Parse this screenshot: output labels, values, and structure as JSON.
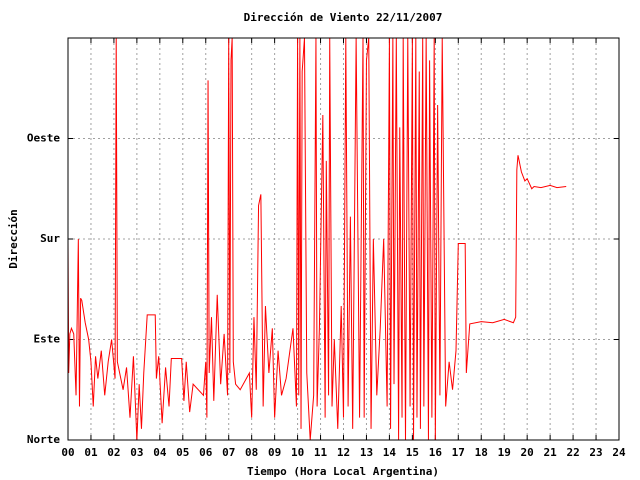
{
  "chart_data": {
    "type": "line",
    "title": "Dirección de Viento 22/11/2007",
    "x_label": "Tiempo (Hora Local Argentina)",
    "y_label": "Dirección",
    "color": "#ff0000",
    "grid": true,
    "xlim": [
      0,
      24
    ],
    "xticks": [
      {
        "value": 0,
        "label": "00"
      },
      {
        "value": 1,
        "label": "01"
      },
      {
        "value": 2,
        "label": "02"
      },
      {
        "value": 3,
        "label": "03"
      },
      {
        "value": 4,
        "label": "04"
      },
      {
        "value": 5,
        "label": "05"
      },
      {
        "value": 6,
        "label": "06"
      },
      {
        "value": 7,
        "label": "07"
      },
      {
        "value": 8,
        "label": "08"
      },
      {
        "value": 9,
        "label": "09"
      },
      10,
      11,
      12,
      13,
      14,
      15,
      16,
      17,
      18,
      19,
      20,
      21,
      22,
      23,
      24
    ],
    "ylim": [
      0,
      360
    ],
    "yticks": [
      {
        "value": 0,
        "label": "Norte"
      },
      {
        "value": 90,
        "label": "Este"
      },
      {
        "value": 180,
        "label": "Sur"
      },
      {
        "value": 270,
        "label": "Oeste"
      }
    ],
    "x": [
      0,
      0.03,
      0.08,
      0.15,
      0.25,
      0.35,
      0.45,
      0.5,
      0.55,
      0.6,
      0.75,
      0.9,
      1.0,
      1.1,
      1.2,
      1.3,
      1.45,
      1.6,
      1.75,
      1.9,
      2.05,
      2.1,
      2.15,
      2.25,
      2.4,
      2.55,
      2.7,
      2.85,
      3.0,
      3.1,
      3.2,
      3.3,
      3.45,
      3.8,
      3.85,
      3.95,
      4.1,
      4.25,
      4.4,
      4.5,
      4.95,
      5.05,
      5.15,
      5.3,
      5.45,
      5.9,
      6.0,
      6.05,
      6.1,
      6.15,
      6.25,
      6.35,
      6.5,
      6.65,
      6.8,
      6.95,
      7.0,
      7.05,
      7.1,
      7.15,
      7.2,
      7.3,
      7.5,
      7.9,
      8.0,
      8.1,
      8.2,
      8.3,
      8.4,
      8.5,
      8.6,
      8.75,
      8.9,
      9.0,
      9.15,
      9.3,
      9.5,
      9.8,
      9.95,
      10.0,
      10.05,
      10.1,
      10.15,
      10.2,
      10.3,
      10.4,
      10.55,
      10.7,
      10.8,
      10.85,
      10.95,
      11.1,
      11.2,
      11.25,
      11.35,
      11.4,
      11.5,
      11.6,
      11.75,
      11.9,
      12.0,
      12.1,
      12.2,
      12.3,
      12.4,
      12.55,
      12.7,
      12.85,
      12.9,
      13.0,
      13.1,
      13.2,
      13.3,
      13.45,
      13.6,
      13.75,
      13.9,
      14.0,
      14.05,
      14.15,
      14.2,
      14.3,
      14.4,
      14.45,
      14.55,
      14.6,
      14.7,
      14.8,
      14.9,
      15.0,
      15.05,
      15.15,
      15.2,
      15.3,
      15.35,
      15.45,
      15.5,
      15.6,
      15.7,
      15.75,
      15.85,
      15.95,
      16.0,
      16.1,
      16.2,
      16.3,
      16.45,
      16.6,
      16.75,
      16.9,
      17.0,
      17.05,
      17.3,
      17.35,
      17.5,
      18.0,
      18.5,
      19.0,
      19.4,
      19.5,
      19.55,
      19.6,
      19.75,
      19.9,
      20.0,
      20.2,
      20.3,
      20.6,
      21.0,
      21.3,
      21.7
    ],
    "values": [
      180,
      60,
      95,
      100,
      95,
      40,
      180,
      30,
      127,
      125,
      105,
      90,
      70,
      30,
      75,
      55,
      80,
      40,
      70,
      90,
      55,
      360,
      70,
      60,
      45,
      65,
      20,
      75,
      0,
      50,
      10,
      60,
      112,
      112,
      55,
      75,
      15,
      65,
      30,
      73,
      73,
      35,
      70,
      25,
      50,
      40,
      70,
      20,
      322,
      60,
      110,
      35,
      130,
      50,
      95,
      40,
      360,
      60,
      340,
      360,
      70,
      50,
      45,
      60,
      20,
      110,
      45,
      210,
      220,
      30,
      120,
      60,
      100,
      20,
      80,
      40,
      55,
      100,
      30,
      360,
      40,
      360,
      10,
      330,
      360,
      60,
      0,
      40,
      360,
      30,
      100,
      291,
      20,
      250,
      40,
      360,
      30,
      90,
      10,
      120,
      20,
      360,
      30,
      200,
      10,
      360,
      20,
      360,
      20,
      340,
      360,
      10,
      180,
      40,
      100,
      180,
      30,
      360,
      10,
      360,
      50,
      360,
      0,
      280,
      20,
      360,
      0,
      360,
      30,
      360,
      0,
      360,
      20,
      330,
      10,
      360,
      30,
      360,
      0,
      340,
      20,
      360,
      0,
      300,
      40,
      360,
      30,
      70,
      45,
      80,
      176,
      176,
      176,
      60,
      104,
      106,
      105,
      108,
      105,
      110,
      242,
      255,
      240,
      232,
      234,
      225,
      227,
      226,
      228,
      226,
      227
    ]
  }
}
